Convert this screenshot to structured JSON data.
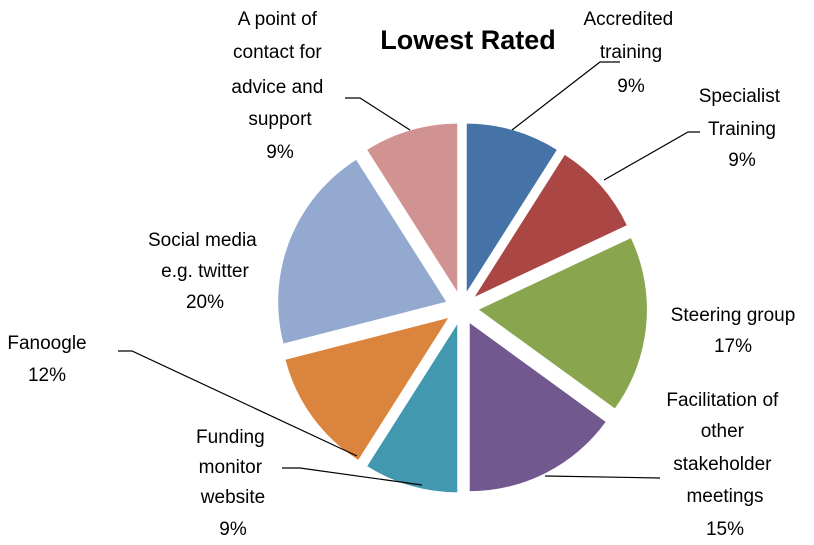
{
  "chart_data": {
    "type": "pie",
    "title": "Lowest Rated",
    "categories": [
      "Accredited training",
      "Specialist Training",
      "Steering group",
      "Facilitation of other stakeholder meetings",
      "Funding monitor website",
      "Fanoogle",
      "Social media e.g. twitter",
      "A point of contact for advice and support"
    ],
    "values": [
      9,
      9,
      17,
      15,
      9,
      12,
      20,
      9
    ],
    "value_labels": [
      "9%",
      "9%",
      "17%",
      "15%",
      "9%",
      "12%",
      "20%",
      "9%"
    ],
    "colors": [
      "#4572a7",
      "#aa4643",
      "#89a54e",
      "#71588f",
      "#4198af",
      "#db843d",
      "#93a9cf",
      "#d19392"
    ]
  }
}
